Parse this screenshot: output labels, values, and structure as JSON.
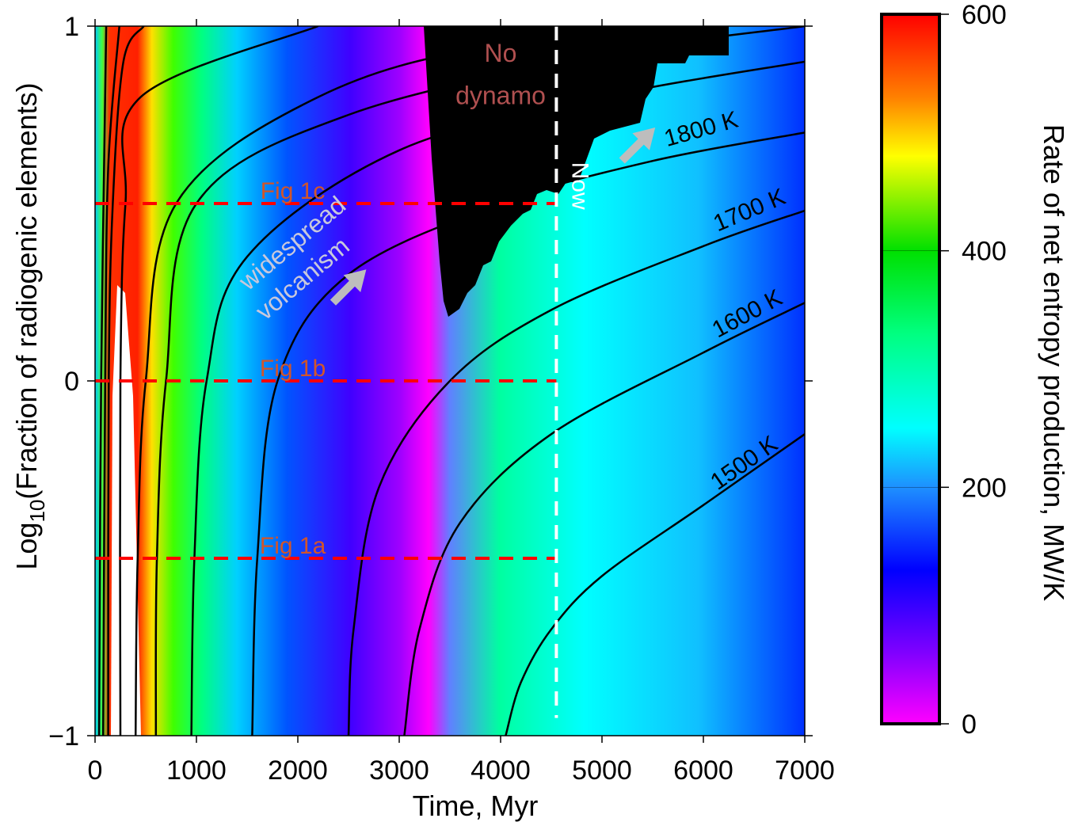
{
  "chart_data": {
    "type": "heatmap",
    "title": "",
    "xlabel": "Time, Myr",
    "ylabel_prefix": "Log",
    "ylabel_subscript": "10",
    "ylabel_suffix": "(Fraction of radiogenic elements)",
    "xlim": [
      0,
      7000
    ],
    "ylim": [
      -1,
      1
    ],
    "x_ticks": [
      0,
      1000,
      2000,
      3000,
      4000,
      5000,
      6000,
      7000
    ],
    "y_ticks": [
      -1,
      0,
      1
    ],
    "y_tick_labels": [
      "−1",
      "0",
      "1"
    ],
    "grid": false,
    "colorbar": {
      "label": "Rate of net entropy production, MW/K",
      "range": [
        0,
        600
      ],
      "ticks": [
        0,
        200,
        400,
        600
      ],
      "colormap": [
        {
          "value": 0,
          "color": "#ff00ff"
        },
        {
          "value": 60,
          "color": "#8000ff"
        },
        {
          "value": 130,
          "color": "#0000ff"
        },
        {
          "value": 200,
          "color": "#1e90ff"
        },
        {
          "value": 250,
          "color": "#00ffff"
        },
        {
          "value": 330,
          "color": "#00ff80"
        },
        {
          "value": 400,
          "color": "#00e000"
        },
        {
          "value": 480,
          "color": "#ffff00"
        },
        {
          "value": 530,
          "color": "#ff8000"
        },
        {
          "value": 600,
          "color": "#ff0000"
        }
      ],
      "overflow_color": "#ffffff"
    },
    "no_dynamo_color": "#000000",
    "contours": [
      {
        "label": "",
        "points": [
          [
            40,
            -1
          ],
          [
            60,
            0
          ],
          [
            110,
            1
          ]
        ]
      },
      {
        "label": "",
        "points": [
          [
            80,
            -1
          ],
          [
            100,
            0
          ],
          [
            130,
            0.6
          ],
          [
            240,
            1
          ]
        ]
      },
      {
        "label": "",
        "points": [
          [
            130,
            -1
          ],
          [
            135,
            0
          ],
          [
            175,
            0.5
          ],
          [
            280,
            0.9
          ],
          [
            480,
            1
          ]
        ]
      },
      {
        "label": "",
        "points": [
          [
            250,
            -1
          ],
          [
            250,
            0
          ],
          [
            300,
            0.5
          ],
          [
            450,
            0.8
          ],
          [
            2200,
            1
          ]
        ]
      },
      {
        "label": "",
        "points": [
          [
            400,
            -1
          ],
          [
            420,
            -0.5
          ],
          [
            500,
            0
          ],
          [
            800,
            0.5
          ],
          [
            2200,
            0.8
          ],
          [
            4000,
            0.95
          ],
          [
            7000,
            1.05
          ]
        ]
      },
      {
        "label": "",
        "points": [
          [
            600,
            -1
          ],
          [
            610,
            -0.5
          ],
          [
            700,
            0
          ],
          [
            1000,
            0.5
          ],
          [
            2500,
            0.75
          ],
          [
            5000,
            0.92
          ],
          [
            7000,
            1.0
          ]
        ]
      },
      {
        "label": "",
        "points": [
          [
            950,
            -1
          ],
          [
            980,
            -0.5
          ],
          [
            1100,
            0
          ],
          [
            1500,
            0.35
          ],
          [
            3000,
            0.65
          ],
          [
            5000,
            0.8
          ],
          [
            7000,
            0.9
          ]
        ]
      },
      {
        "label": "1800 K",
        "points": [
          [
            1550,
            -1
          ],
          [
            1600,
            -0.5
          ],
          [
            1800,
            0
          ],
          [
            2500,
            0.3
          ],
          [
            4000,
            0.5
          ],
          [
            5500,
            0.62
          ],
          [
            7000,
            0.7
          ]
        ]
      },
      {
        "label": "1700 K",
        "points": [
          [
            2500,
            -1
          ],
          [
            2550,
            -0.7
          ],
          [
            2800,
            -0.3
          ],
          [
            3500,
            0
          ],
          [
            4500,
            0.2
          ],
          [
            6000,
            0.38
          ],
          [
            7000,
            0.48
          ]
        ]
      },
      {
        "label": "1600 K",
        "points": [
          [
            3050,
            -1
          ],
          [
            3200,
            -0.7
          ],
          [
            3600,
            -0.4
          ],
          [
            4500,
            -0.15
          ],
          [
            6000,
            0.08
          ],
          [
            7000,
            0.22
          ]
        ]
      },
      {
        "label": "1500 K",
        "points": [
          [
            4050,
            -1
          ],
          [
            4200,
            -0.85
          ],
          [
            4500,
            -0.7
          ],
          [
            5000,
            -0.55
          ],
          [
            6000,
            -0.35
          ],
          [
            7000,
            -0.15
          ]
        ]
      }
    ],
    "reference_lines": [
      {
        "label": "Fig 1c",
        "y": 0.5,
        "x_range": [
          0,
          4550
        ],
        "color": "#ff0000"
      },
      {
        "label": "Fig 1b",
        "y": 0.0,
        "x_range": [
          0,
          4550
        ],
        "color": "#ff0000"
      },
      {
        "label": "Fig 1a",
        "y": -0.5,
        "x_range": [
          0,
          4550
        ],
        "color": "#ff0000"
      }
    ],
    "now_line": {
      "label": "Now",
      "x": 4550,
      "y_range": [
        -0.95,
        1
      ],
      "color": "#ffffff"
    },
    "annotations": [
      {
        "text": "No",
        "x": 4000,
        "y": 0.9
      },
      {
        "text": "dynamo",
        "x": 4000,
        "y": 0.78
      },
      {
        "text": "widespread",
        "x": 2000,
        "y": 0.37
      },
      {
        "text": "volcanism",
        "x": 2100,
        "y": 0.27
      }
    ],
    "arrows": [
      {
        "name": "volcanism-arrow",
        "x": 2450,
        "y": 0.25,
        "direction": "up-right"
      },
      {
        "name": "shift-arrow",
        "x": 5300,
        "y": 0.65,
        "direction": "up-right"
      }
    ]
  }
}
